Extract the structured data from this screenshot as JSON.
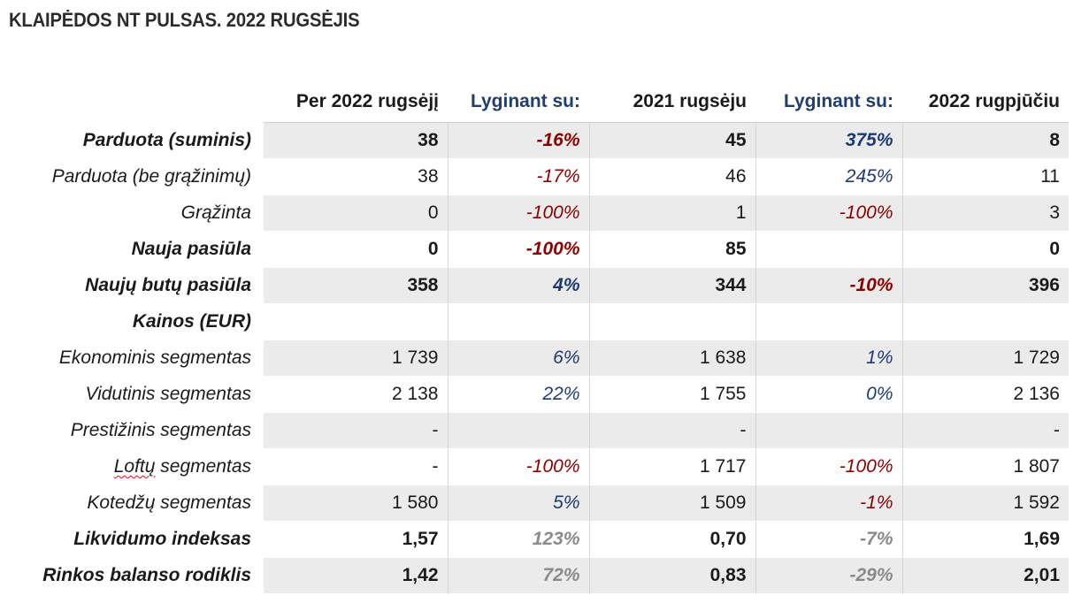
{
  "title": "KLAIPĖDOS NT PULSAS. 2022 RUGSĖJIS",
  "headers": [
    "Per 2022 rugsėjį",
    "Lyginant su:",
    "2021 rugsėju",
    "Lyginant su:",
    "2022 rugpjūčiu"
  ],
  "rows": [
    {
      "label": "Parduota (suminis)",
      "v1": "38",
      "c1": "-16%",
      "v2": "45",
      "c2": "375%",
      "v3": "8"
    },
    {
      "label": "Parduota (be grąžinimų)",
      "v1": "38",
      "c1": "-17%",
      "v2": "46",
      "c2": "245%",
      "v3": "11"
    },
    {
      "label": "Grąžinta",
      "v1": "0",
      "c1": "-100%",
      "v2": "1",
      "c2": "-100%",
      "v3": "3"
    },
    {
      "label": "Nauja pasiūla",
      "v1": "0",
      "c1": "-100%",
      "v2": "85",
      "c2": "",
      "v3": "0"
    },
    {
      "label": "Naujų butų pasiūla",
      "v1": "358",
      "c1": "4%",
      "v2": "344",
      "c2": "-10%",
      "v3": "396"
    },
    {
      "label": "Kainos (EUR)",
      "v1": "",
      "c1": "",
      "v2": "",
      "c2": "",
      "v3": ""
    },
    {
      "label": "Ekonominis segmentas",
      "v1": "1 739",
      "c1": "6%",
      "v2": "1 638",
      "c2": "1%",
      "v3": "1 729"
    },
    {
      "label": "Vidutinis segmentas",
      "v1": "2 138",
      "c1": "22%",
      "v2": "1 755",
      "c2": "0%",
      "v3": "2 136"
    },
    {
      "label": "Prestižinis segmentas",
      "v1": "-",
      "c1": "",
      "v2": "-",
      "c2": "",
      "v3": "-"
    },
    {
      "label_underlined": "Loftų",
      "label_rest": " segmentas",
      "v1": "-",
      "c1": "-100%",
      "v2": "1 717",
      "c2": "-100%",
      "v3": "1 807"
    },
    {
      "label": "Kotedžų segmentas",
      "v1": "1 580",
      "c1": "5%",
      "v2": "1 509",
      "c2": "-1%",
      "v3": "1 592"
    },
    {
      "label": "Likvidumo indeksas",
      "v1": "1,57",
      "c1": "123%",
      "v2": "0,70",
      "c2": "-7%",
      "v3": "1,69"
    },
    {
      "label": "Rinkos balanso rodiklis",
      "v1": "1,42",
      "c1": "72%",
      "v2": "0,83",
      "c2": "-29%",
      "v3": "2,01"
    }
  ],
  "colors": {
    "negative": "#8b0000",
    "positive": "#1f3a73",
    "neutral": "#8a8a8a",
    "shade": "#ebebeb"
  }
}
